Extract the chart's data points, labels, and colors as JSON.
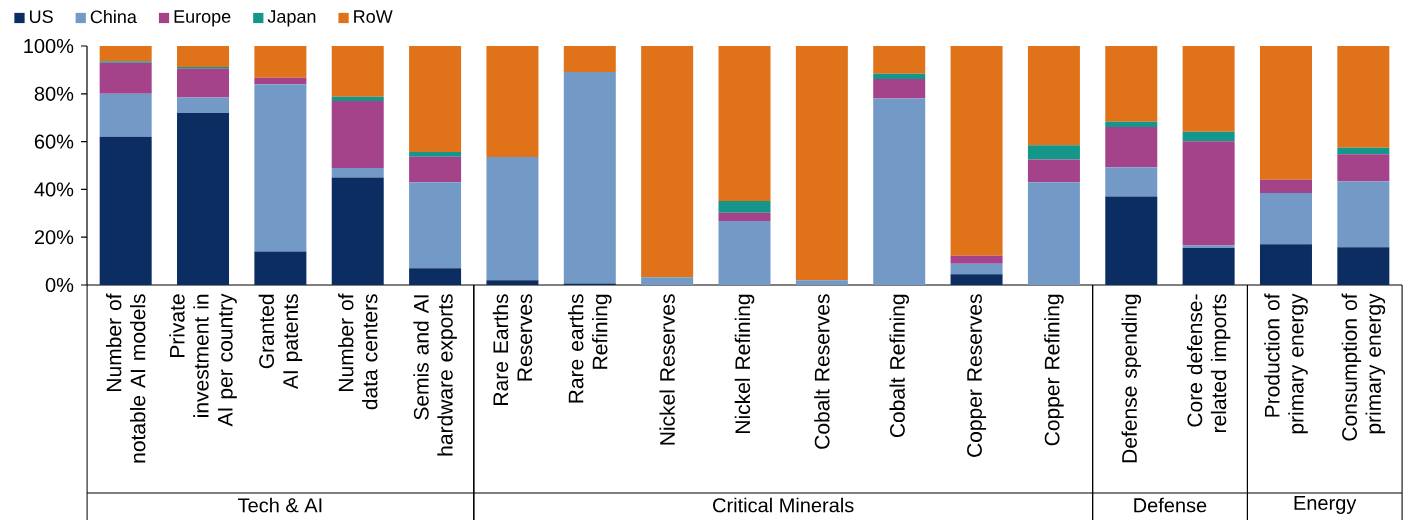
{
  "chart_data": {
    "type": "bar",
    "stacked": true,
    "categories": [
      "Number of notable AI models",
      "Private investment in AI per country",
      "Granted AI patents",
      "Number of data centers",
      "Semis and AI hardware exports",
      "Rare Earths Reserves",
      "Rare earths Refining",
      "Nickel Reserves",
      "Nickel Refining",
      "Cobalt Reserves",
      "Cobalt Refining",
      "Copper Reserves",
      "Copper Refining",
      "Defense spending",
      "Core defense-related imports",
      "Production of primary energy",
      "Consumption of primary energy"
    ],
    "series": [
      {
        "name": "US",
        "color": "#0b2d62",
        "values": [
          62,
          72,
          14,
          45,
          7,
          2,
          0.6,
          0,
          0,
          0,
          0,
          4.5,
          0,
          37,
          15.5,
          17,
          15.8
        ]
      },
      {
        "name": "China",
        "color": "#7399c6",
        "values": [
          18,
          6.5,
          70,
          4,
          36,
          51.6,
          88.5,
          3.2,
          26.8,
          2,
          78,
          4.4,
          43,
          12.3,
          1,
          21.5,
          27.6
        ]
      },
      {
        "name": "Europe",
        "color": "#a4428a",
        "values": [
          13,
          12,
          2.7,
          28,
          10.7,
          0,
          0,
          0,
          3.4,
          0,
          8.2,
          3.3,
          9.5,
          16.8,
          43.6,
          5.5,
          11.3
        ]
      },
      {
        "name": "Japan",
        "color": "#14968a",
        "values": [
          0.6,
          0.7,
          0,
          1.8,
          2,
          0,
          0,
          0,
          4.9,
          0,
          2.2,
          0,
          6,
          2.2,
          4,
          0,
          2.7
        ]
      },
      {
        "name": "RoW",
        "color": "#e0731a",
        "values": [
          6.4,
          8.8,
          13.3,
          21.2,
          44.3,
          46.4,
          10.9,
          96.8,
          64.9,
          98,
          11.6,
          87.8,
          41.5,
          31.7,
          35.9,
          56,
          42.6
        ]
      }
    ],
    "ylim": [
      0,
      100
    ],
    "yticks": [
      {
        "value": 0,
        "label": "0%"
      },
      {
        "value": 20,
        "label": "20%"
      },
      {
        "value": 40,
        "label": "40%"
      },
      {
        "value": 60,
        "label": "60%"
      },
      {
        "value": 80,
        "label": "80%"
      },
      {
        "value": 100,
        "label": "100%"
      }
    ],
    "legend": "top left",
    "annotations": [
      "Tech & AI",
      "Critical Minerals",
      "Defense",
      "Energy"
    ]
  }
}
